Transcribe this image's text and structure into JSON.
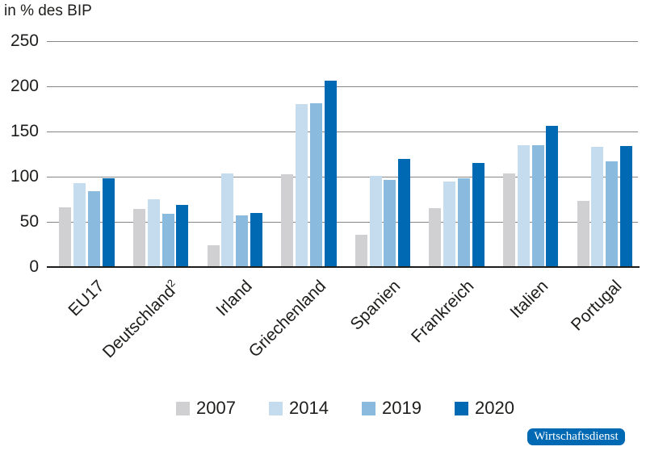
{
  "branding": {
    "label": "Wirtschaftsdienst",
    "bg_color": "#0069b4",
    "text_color": "#ffffff"
  },
  "colors": {
    "background": "#ffffff",
    "grid": "#878787",
    "axis": "#1d1d1b",
    "text": "#1d1d1b"
  },
  "chart_data": {
    "type": "bar",
    "title": "in % des BIP",
    "categories": [
      "EU17",
      "Deutschland²",
      "Irland",
      "Griechenland",
      "Spanien",
      "Frankreich",
      "Italien",
      "Portugal"
    ],
    "series": [
      {
        "name": "2007",
        "color": "#d0d0d2",
        "values": [
          66,
          64,
          24,
          103,
          36,
          65,
          104,
          73
        ]
      },
      {
        "name": "2014",
        "color": "#c5dcef",
        "values": [
          93,
          75,
          104,
          180,
          101,
          95,
          135,
          133
        ]
      },
      {
        "name": "2019",
        "color": "#8abade",
        "values": [
          84,
          59,
          57,
          181,
          96,
          98,
          135,
          117
        ]
      },
      {
        "name": "2020",
        "color": "#0069b4",
        "values": [
          98,
          69,
          60,
          206,
          120,
          115,
          156,
          134
        ]
      }
    ],
    "ylabel": "",
    "xlabel": "",
    "ylim": [
      0,
      250
    ],
    "yticks": [
      0,
      50,
      100,
      150,
      200,
      250
    ],
    "grid": true,
    "legend_position": "bottom"
  }
}
